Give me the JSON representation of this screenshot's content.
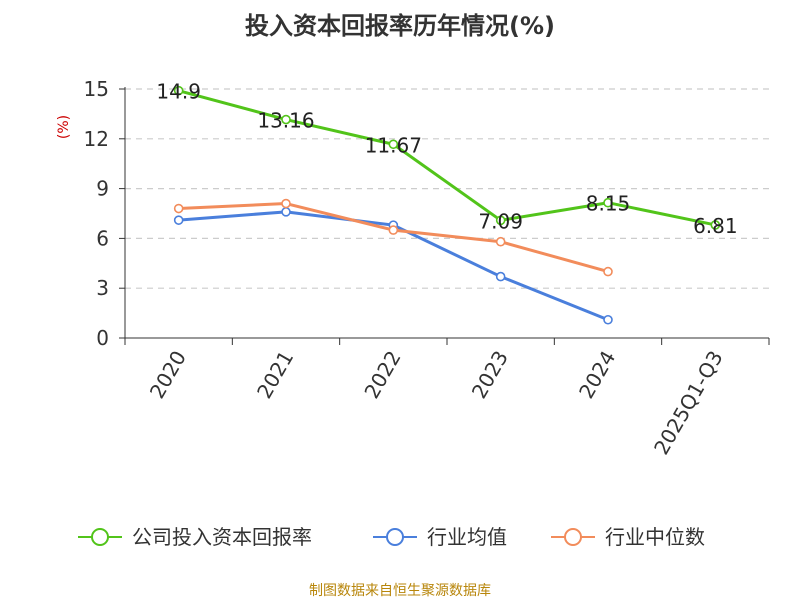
{
  "chart_data": {
    "type": "line",
    "title": "投入资本回报率历年情况(%)",
    "ylabel": "(%)",
    "xlabel": "",
    "categories": [
      "2020",
      "2021",
      "2022",
      "2023",
      "2024",
      "2025Q1-Q3"
    ],
    "ylim": [
      0,
      15
    ],
    "yticks": [
      0,
      3,
      6,
      9,
      12,
      15
    ],
    "grid": true,
    "legend_position": "bottom",
    "series": [
      {
        "name": "公司投入资本回报率",
        "color": "#52c41a",
        "values": [
          14.9,
          13.16,
          11.67,
          7.09,
          8.15,
          6.81
        ],
        "labels": [
          "14.9",
          "13.16",
          "11.67",
          "7.09",
          "8.15",
          "6.81"
        ]
      },
      {
        "name": "行业均值",
        "color": "#4a7fdc",
        "values": [
          7.1,
          7.6,
          6.8,
          3.7,
          1.1,
          null
        ]
      },
      {
        "name": "行业中位数",
        "color": "#f28c5b",
        "values": [
          7.8,
          8.1,
          6.5,
          5.8,
          4.0,
          null
        ]
      }
    ],
    "source": "制图数据来自恒生聚源数据库"
  }
}
